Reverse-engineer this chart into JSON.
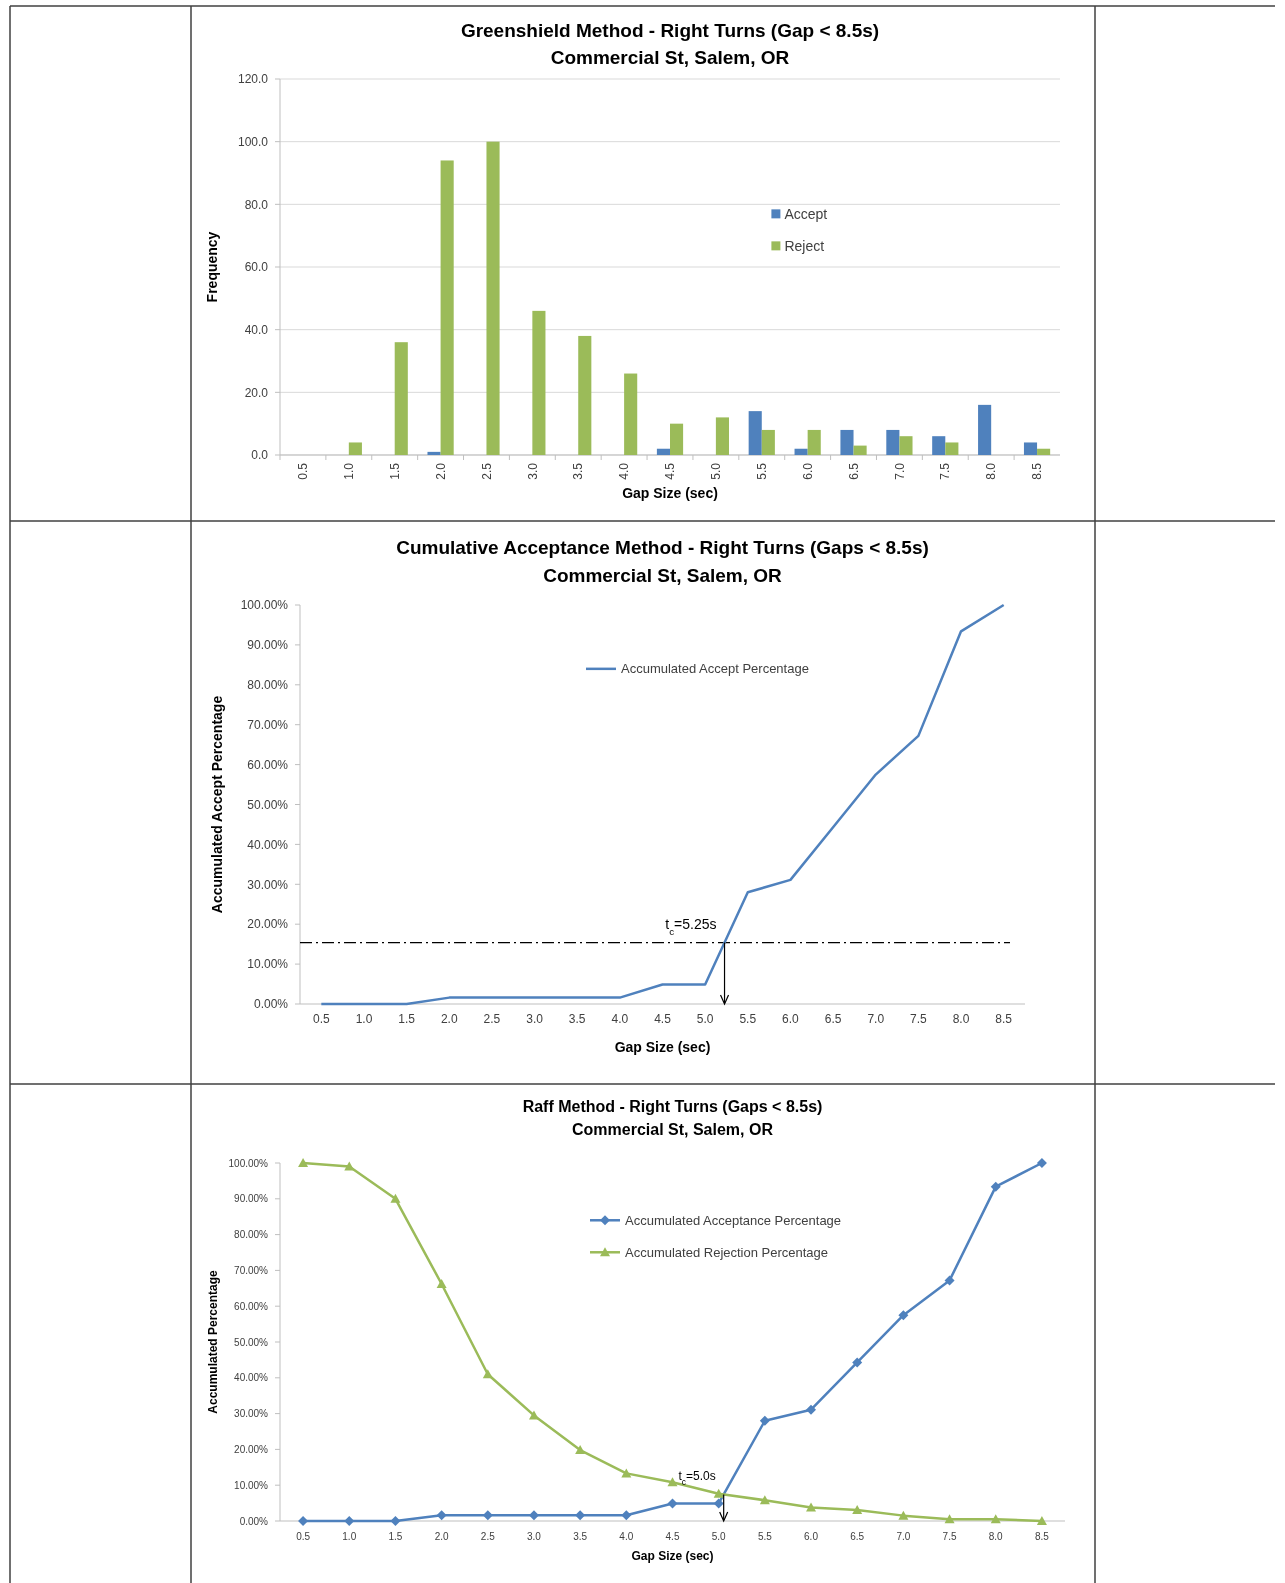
{
  "chart_data": [
    {
      "type": "bar",
      "title": "Greenshield Method - Right Turns (Gap < 8.5s)",
      "subtitle": "Commercial St, Salem, OR",
      "xlabel": "Gap Size (sec)",
      "ylabel": "Frequency",
      "categories": [
        "0.5",
        "1.0",
        "1.5",
        "2.0",
        "2.5",
        "3.0",
        "3.5",
        "4.0",
        "4.5",
        "5.0",
        "5.5",
        "6.0",
        "6.5",
        "7.0",
        "7.5",
        "8.0",
        "8.5"
      ],
      "series": [
        {
          "name": "Accept",
          "color": "#4f81bd",
          "values": [
            0,
            0,
            0,
            1,
            0,
            0,
            0,
            0,
            2,
            0,
            14,
            2,
            8,
            8,
            6,
            16,
            4
          ]
        },
        {
          "name": "Reject",
          "color": "#9bbb59",
          "values": [
            0,
            4,
            36,
            94,
            100,
            46,
            38,
            26,
            10,
            12,
            8,
            8,
            3,
            6,
            4,
            0,
            2
          ]
        }
      ],
      "ylim": [
        0,
        120
      ],
      "yticks": [
        {
          "value": 0,
          "label": "0.0"
        },
        {
          "value": 20,
          "label": "20.0"
        },
        {
          "value": 40,
          "label": "40.0"
        },
        {
          "value": 60,
          "label": "60.0"
        },
        {
          "value": 80,
          "label": "80.0"
        },
        {
          "value": 100,
          "label": "100.0"
        },
        {
          "value": 120,
          "label": "120.0"
        }
      ],
      "grid": "y",
      "legend": "top right"
    },
    {
      "type": "line",
      "title": "Cumulative Acceptance Method - Right Turns (Gaps < 8.5s)",
      "subtitle": "Commercial St, Salem, OR",
      "xlabel": "Gap Size (sec)",
      "ylabel": "Accumulated Accept Percentage",
      "categories": [
        "0.5",
        "1.0",
        "1.5",
        "2.0",
        "2.5",
        "3.0",
        "3.5",
        "4.0",
        "4.5",
        "5.0",
        "5.5",
        "6.0",
        "6.5",
        "7.0",
        "7.5",
        "8.0",
        "8.5"
      ],
      "series": [
        {
          "name": "Accumulated Accept Percentage",
          "color": "#4f81bd",
          "values": [
            0,
            0,
            0,
            1.6,
            1.6,
            1.6,
            1.6,
            1.6,
            4.9,
            4.9,
            28,
            31.1,
            44.3,
            57.5,
            67.2,
            93.4,
            100
          ]
        }
      ],
      "ylim": [
        0,
        100
      ],
      "yticks": [
        {
          "value": 0,
          "label": "0.00%"
        },
        {
          "value": 10,
          "label": "10.00%"
        },
        {
          "value": 20,
          "label": "20.00%"
        },
        {
          "value": 30,
          "label": "30.00%"
        },
        {
          "value": 40,
          "label": "40.00%"
        },
        {
          "value": 50,
          "label": "50.00%"
        },
        {
          "value": 60,
          "label": "60.00%"
        },
        {
          "value": 70,
          "label": "70.00%"
        },
        {
          "value": 80,
          "label": "80.00%"
        },
        {
          "value": 90,
          "label": "90.00%"
        },
        {
          "value": 100,
          "label": "100.00%"
        }
      ],
      "ref_lines": [
        {
          "axis": "y",
          "value": 15.4,
          "color": "#000000",
          "line_style": "dashed"
        }
      ],
      "annotations": [
        "t$_{c}$=5.25s"
      ],
      "legend": "top"
    },
    {
      "type": "line",
      "title": "Raff Method - Right Turns (Gaps < 8.5s)",
      "subtitle": "Commercial St, Salem, OR",
      "xlabel": "Gap Size (sec)",
      "ylabel": "Accumulated Percentage",
      "categories": [
        "0.5",
        "1.0",
        "1.5",
        "2.0",
        "2.5",
        "3.0",
        "3.5",
        "4.0",
        "4.5",
        "5.0",
        "5.5",
        "6.0",
        "6.5",
        "7.0",
        "7.5",
        "8.0",
        "8.5"
      ],
      "series": [
        {
          "name": "Accumulated Acceptance Percentage",
          "color": "#4f81bd",
          "marker": "diamond",
          "values": [
            0,
            0,
            0,
            1.6,
            1.6,
            1.6,
            1.6,
            1.6,
            4.9,
            4.9,
            28,
            31.1,
            44.3,
            57.5,
            67.2,
            93.4,
            100
          ]
        },
        {
          "name": "Accumulated Rejection Percentage",
          "color": "#9bbb59",
          "marker": "triangle",
          "values": [
            100,
            99,
            90,
            66.2,
            41,
            29.5,
            19.8,
            13.3,
            10.8,
            7.6,
            5.8,
            3.8,
            3.1,
            1.5,
            0.5,
            0.5,
            0
          ]
        }
      ],
      "ylim": [
        0,
        100
      ],
      "yticks": [
        {
          "value": 0,
          "label": "0.00%"
        },
        {
          "value": 10,
          "label": "10.00%"
        },
        {
          "value": 20,
          "label": "20.00%"
        },
        {
          "value": 30,
          "label": "30.00%"
        },
        {
          "value": 40,
          "label": "40.00%"
        },
        {
          "value": 50,
          "label": "50.00%"
        },
        {
          "value": 60,
          "label": "60.00%"
        },
        {
          "value": 70,
          "label": "70.00%"
        },
        {
          "value": 80,
          "label": "80.00%"
        },
        {
          "value": 90,
          "label": "90.00%"
        },
        {
          "value": 100,
          "label": "100.00%"
        }
      ],
      "annotations": [
        "t$_{c}$=5.0s"
      ],
      "legend": "top"
    }
  ]
}
